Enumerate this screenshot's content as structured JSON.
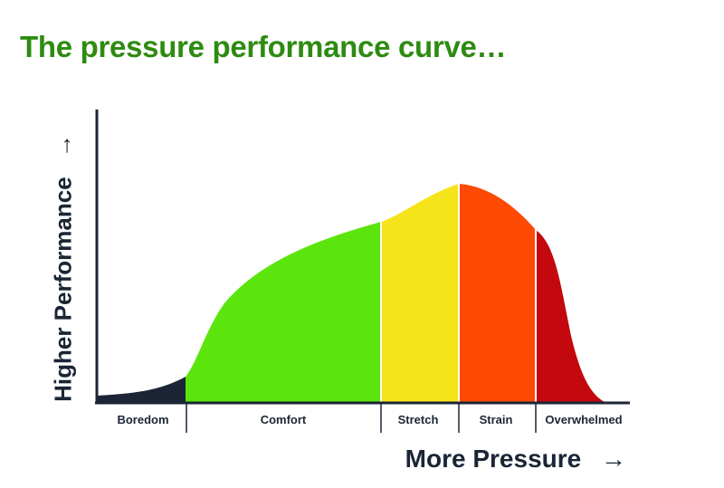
{
  "title": "The pressure performance curve…",
  "y_axis_label": "Higher Performance",
  "y_axis_arrow": "→",
  "x_axis_label": "More Pressure",
  "x_axis_arrow": "→",
  "zones": [
    {
      "label": "Boredom",
      "color": "#1b2535"
    },
    {
      "label": "Comfort",
      "color": "#5be50c"
    },
    {
      "label": "Stretch",
      "color": "#f6e41b"
    },
    {
      "label": "Strain",
      "color": "#ff4a06"
    },
    {
      "label": "Overwhelmed",
      "color": "#c3080e"
    }
  ],
  "colors": {
    "title": "#2e8b12",
    "text": "#1b2535",
    "axis": "#1b2535"
  }
}
